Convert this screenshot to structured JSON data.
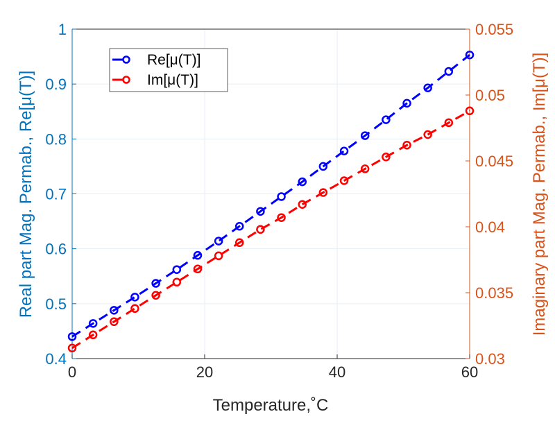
{
  "chart_data": {
    "type": "line",
    "title": "",
    "xlabel": "Temperature,˚C",
    "ylabel_left": "Real part Mag. Permab., Re[μ(T)]",
    "ylabel_right": "Imaginary part Mag. Permab., Im[μ(T)]",
    "xlim": [
      0,
      60
    ],
    "ylim_left": [
      0.4,
      1
    ],
    "ylim_right": [
      0.03,
      0.055
    ],
    "xticks": [
      "0",
      "20",
      "40",
      "60"
    ],
    "yticks_left": [
      "0.4",
      "0.5",
      "0.6",
      "0.7",
      "0.8",
      "0.9",
      "1"
    ],
    "yticks_right": [
      "0.03",
      "0.035",
      "0.04",
      "0.045",
      "0.05",
      "0.055"
    ],
    "grid": true,
    "legend_position": "top-left",
    "x": [
      0,
      3.16,
      6.32,
      9.47,
      12.63,
      15.79,
      18.95,
      22.11,
      25.26,
      28.42,
      31.58,
      34.74,
      37.89,
      41.05,
      44.21,
      47.37,
      50.53,
      53.68,
      56.84,
      60
    ],
    "series": [
      {
        "name": "Re[μ(T)]",
        "axis": "left",
        "color": "#0000FF",
        "values": [
          0.44,
          0.464,
          0.488,
          0.512,
          0.537,
          0.562,
          0.588,
          0.614,
          0.641,
          0.668,
          0.695,
          0.722,
          0.75,
          0.778,
          0.806,
          0.835,
          0.865,
          0.893,
          0.923,
          0.953
        ]
      },
      {
        "name": "Im[μ(T)]",
        "axis": "right",
        "color": "#FF0000",
        "values": [
          0.0308,
          0.0318,
          0.0328,
          0.0338,
          0.0348,
          0.0358,
          0.0368,
          0.0378,
          0.0388,
          0.0398,
          0.0407,
          0.0417,
          0.0426,
          0.0435,
          0.0444,
          0.0453,
          0.0462,
          0.047,
          0.0479,
          0.0488
        ]
      }
    ]
  },
  "colors": {
    "left_axis": "#0072BD",
    "right_axis": "#D95319",
    "grid": "#E6EEF5"
  }
}
